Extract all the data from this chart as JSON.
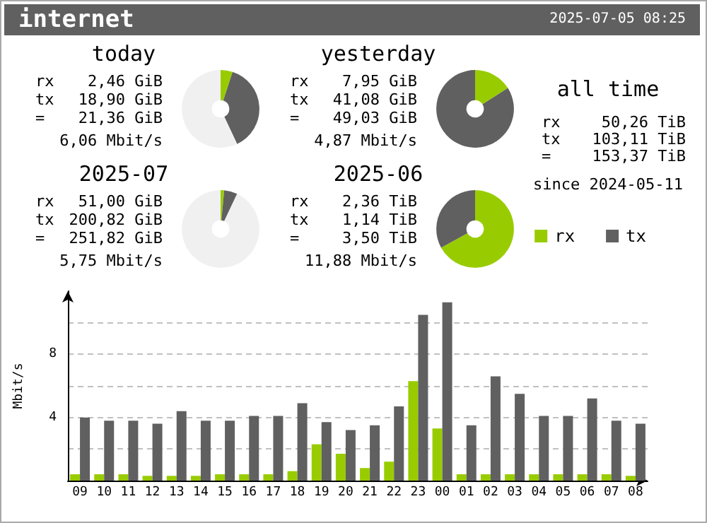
{
  "chart_data": [
    {
      "type": "other",
      "title": "internet",
      "subtitle": "2025-07-05 08:25"
    },
    {
      "type": "donut",
      "title": "today",
      "categories": [
        null,
        null,
        null
      ],
      "values": [
        5,
        38,
        57
      ],
      "colors": [
        "#99cc00",
        "#606060",
        "#f0f0f0"
      ],
      "annotations": [
        "rx",
        "2,46 GiB",
        "tx",
        "18,90 GiB",
        "=",
        "21,36 GiB",
        "6,06 Mbit/s"
      ]
    },
    {
      "type": "donut",
      "title": "yesterday",
      "categories": [
        null,
        null,
        null
      ],
      "values": [
        16,
        84,
        0
      ],
      "colors": [
        "#99cc00",
        "#606060",
        "#f0f0f0"
      ],
      "annotations": [
        "rx",
        "7,95 GiB",
        "tx",
        "41,08 GiB",
        "=",
        "49,03 GiB",
        "4,87 Mbit/s"
      ]
    },
    {
      "type": "donut",
      "title": "2025-07",
      "categories": [
        null,
        null,
        null
      ],
      "values": [
        1.5,
        5.5,
        93
      ],
      "colors": [
        "#99cc00",
        "#606060",
        "#f0f0f0"
      ],
      "annotations": [
        "rx",
        "51,00 GiB",
        "tx",
        "200,82 GiB",
        "=",
        "251,82 GiB",
        "5,75 Mbit/s"
      ]
    },
    {
      "type": "donut",
      "title": "2025-06",
      "categories": [
        null,
        null,
        null
      ],
      "values": [
        67,
        33,
        0
      ],
      "colors": [
        "#99cc00",
        "#606060",
        "#f0f0f0"
      ],
      "annotations": [
        "rx",
        "2,36 TiB",
        "tx",
        "1,14 TiB",
        "=",
        "3,50 TiB",
        "11,88 Mbit/s"
      ]
    },
    {
      "type": "other",
      "title": "all time",
      "annotations": [
        "rx",
        "50,26 TiB",
        "tx",
        "103,11 TiB",
        "=",
        "153,37 TiB",
        "since 2024-05-11"
      ]
    },
    {
      "type": "bar",
      "ylabel": "Mbit/s",
      "categories": [
        "09",
        "10",
        "11",
        "12",
        "13",
        "14",
        "15",
        "16",
        "17",
        "18",
        "19",
        "20",
        "21",
        "22",
        "23",
        "00",
        "01",
        "02",
        "03",
        "04",
        "05",
        "06",
        "07",
        "08"
      ],
      "series": [
        {
          "name": "rx",
          "color": "#99cc00",
          "values": [
            0.4,
            0.4,
            0.4,
            0.3,
            0.3,
            0.3,
            0.4,
            0.4,
            0.4,
            0.6,
            2.3,
            1.7,
            0.8,
            1.2,
            6.3,
            3.3,
            0.4,
            0.4,
            0.4,
            0.4,
            0.4,
            0.4,
            0.4,
            0.3
          ]
        },
        {
          "name": "tx",
          "color": "#606060",
          "values": [
            4.0,
            3.8,
            3.8,
            3.6,
            4.4,
            3.8,
            3.8,
            4.1,
            4.1,
            4.9,
            3.7,
            3.2,
            3.5,
            4.7,
            10.5,
            11.3,
            3.5,
            6.6,
            5.5,
            4.1,
            4.1,
            5.2,
            3.8,
            3.6
          ]
        }
      ],
      "ylim": [
        0,
        12
      ],
      "yticks": [
        {
          "value": 2,
          "label": null
        },
        4,
        {
          "value": 6,
          "label": null
        },
        8,
        {
          "value": 10,
          "label": null
        }
      ],
      "grid": "y",
      "legend": "top right"
    }
  ]
}
